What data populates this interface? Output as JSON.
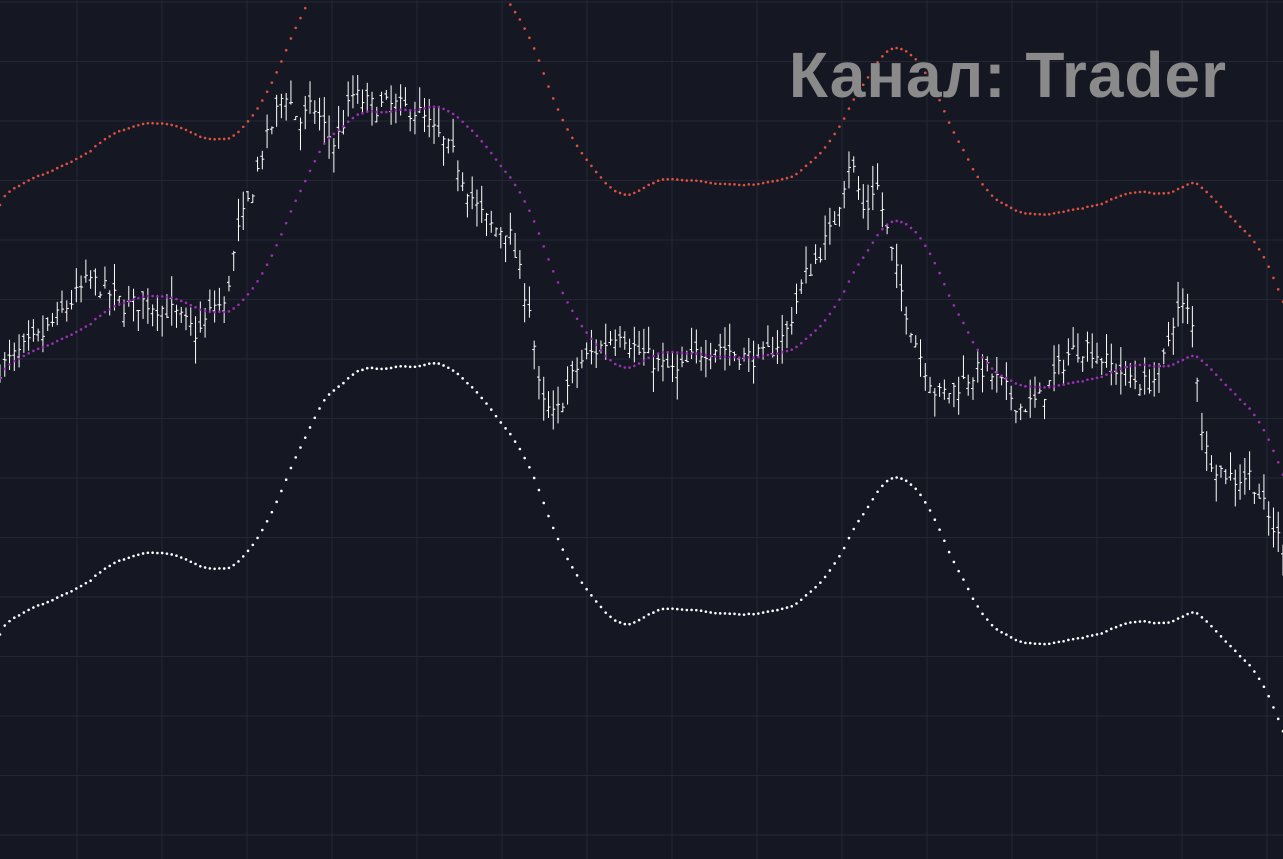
{
  "watermark": "Канал: Trader",
  "colors": {
    "background": "#151823",
    "grid": "#232734",
    "price_bars": "#ffffff",
    "upper_band": "#e0503f",
    "middle_band": "#9b2fb5",
    "lower_band": "#ffffff"
  },
  "chart_data": {
    "type": "ohlc-bars-with-envelope-bands",
    "title": "",
    "xlabel": "",
    "ylabel": "",
    "grid": true,
    "legend": "none",
    "axes_visible": false,
    "bar_count": 270,
    "price_anchors": [
      [
        0,
        0.36
      ],
      [
        12,
        0.42
      ],
      [
        25,
        0.52
      ],
      [
        35,
        0.47
      ],
      [
        40,
        0.48
      ],
      [
        48,
        0.46
      ],
      [
        55,
        0.42
      ],
      [
        60,
        0.48
      ],
      [
        62,
        0.46
      ],
      [
        63,
        0.5
      ],
      [
        66,
        0.6
      ],
      [
        70,
        0.68
      ],
      [
        73,
        0.75
      ],
      [
        79,
        0.86
      ],
      [
        83,
        0.8
      ],
      [
        87,
        0.83
      ],
      [
        91,
        0.78
      ],
      [
        93,
        0.76
      ],
      [
        98,
        0.85
      ],
      [
        103,
        0.83
      ],
      [
        110,
        0.83
      ],
      [
        116,
        0.82
      ],
      [
        121,
        0.78
      ],
      [
        126,
        0.74
      ],
      [
        130,
        0.68
      ],
      [
        133,
        0.64
      ],
      [
        137,
        0.61
      ],
      [
        141,
        0.61
      ],
      [
        145,
        0.51
      ],
      [
        147,
        0.47
      ],
      [
        150,
        0.3
      ],
      [
        154,
        0.27
      ],
      [
        157,
        0.32
      ],
      [
        161,
        0.37
      ],
      [
        167,
        0.4
      ],
      [
        172,
        0.43
      ],
      [
        177,
        0.39
      ],
      [
        182,
        0.37
      ],
      [
        188,
        0.35
      ],
      [
        194,
        0.39
      ],
      [
        200,
        0.4
      ],
      [
        206,
        0.38
      ],
      [
        212,
        0.38
      ],
      [
        218,
        0.42
      ],
      [
        223,
        0.52
      ],
      [
        226,
        0.55
      ],
      [
        231,
        0.61
      ],
      [
        236,
        0.74
      ],
      [
        240,
        0.63
      ],
      [
        243,
        0.7
      ],
      [
        248,
        0.55
      ],
      [
        252,
        0.45
      ],
      [
        255,
        0.39
      ],
      [
        260,
        0.31
      ],
      [
        264,
        0.32
      ],
      [
        268,
        0.34
      ],
      [
        273,
        0.36
      ],
      [
        278,
        0.33
      ],
      [
        283,
        0.29
      ],
      [
        288,
        0.3
      ],
      [
        293,
        0.35
      ],
      [
        297,
        0.39
      ],
      [
        302,
        0.4
      ],
      [
        307,
        0.37
      ],
      [
        312,
        0.35
      ],
      [
        318,
        0.33
      ],
      [
        322,
        0.35
      ],
      [
        326,
        0.46
      ],
      [
        329,
        0.47
      ],
      [
        331,
        0.43
      ],
      [
        334,
        0.22
      ],
      [
        338,
        0.18
      ],
      [
        343,
        0.16
      ],
      [
        347,
        0.17
      ],
      [
        352,
        0.09
      ],
      [
        356,
        0.04
      ]
    ],
    "band_offsets": {
      "upper": 0.31,
      "lower": -0.46
    },
    "band_smoothing_period": 20,
    "bands": [
      {
        "key": "upper_band",
        "offset": 0.31
      },
      {
        "key": "middle_band",
        "offset": 0.0
      },
      {
        "key": "lower_band",
        "offset": -0.46
      }
    ]
  }
}
